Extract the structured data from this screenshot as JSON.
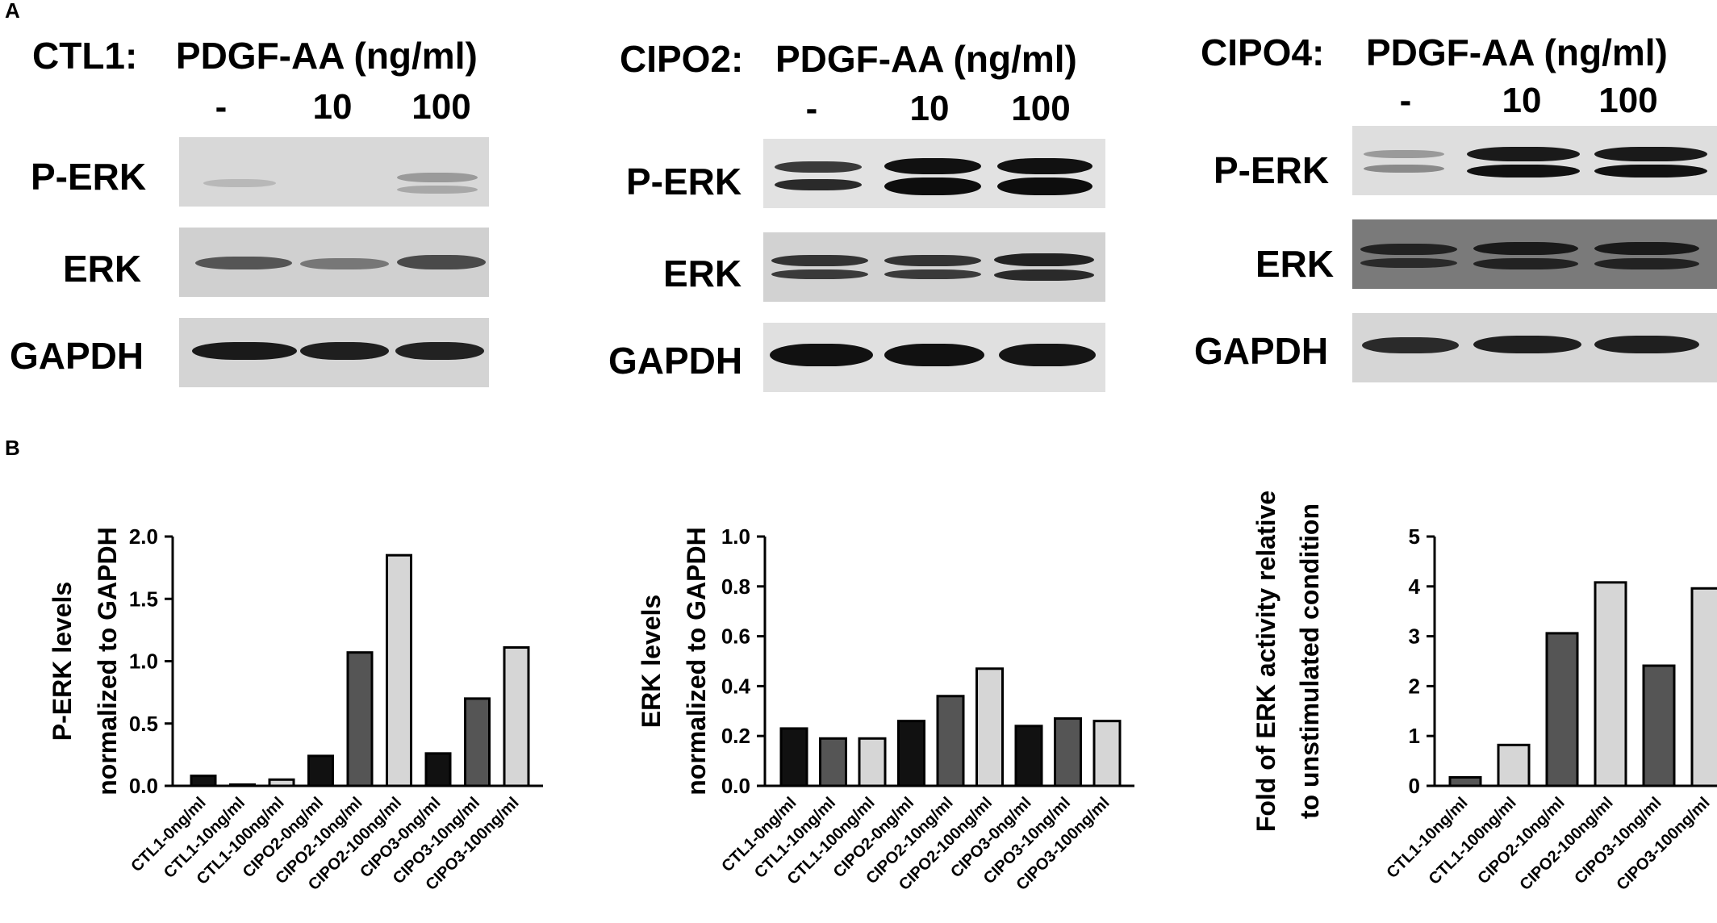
{
  "panel_labels": {
    "a": "A",
    "b": "B"
  },
  "blots": [
    {
      "cell_line": "CTL1:",
      "treatment": "PDGF-AA (ng/ml)",
      "doses": [
        "-",
        "10",
        "100"
      ],
      "rows": [
        "P-ERK",
        "ERK",
        "GAPDH"
      ]
    },
    {
      "cell_line": "CIPO2:",
      "treatment": "PDGF-AA (ng/ml)",
      "doses": [
        "-",
        "10",
        "100"
      ],
      "rows": [
        "P-ERK",
        "ERK",
        "GAPDH"
      ]
    },
    {
      "cell_line": "CIPO4:",
      "treatment": "PDGF-AA (ng/ml)",
      "doses": [
        "-",
        "10",
        "100"
      ],
      "rows": [
        "P-ERK",
        "ERK",
        "GAPDH"
      ]
    }
  ],
  "colors": {
    "black": "#111111",
    "dark_gray": "#555555",
    "light_gray": "#d6d6d6"
  },
  "chart_data": [
    {
      "type": "bar",
      "ylabel": [
        "P-ERK levels",
        "normalized to GAPDH"
      ],
      "ylim": [
        0,
        2.0
      ],
      "yticks": [
        "0.0",
        "0.5",
        "1.0",
        "1.5",
        "2.0"
      ],
      "categories": [
        "CTL1-0ng/ml",
        "CTL1-10ng/ml",
        "CTL1-100ng/ml",
        "CIPO2-0ng/ml",
        "CIPO2-10ng/ml",
        "CIPO2-100ng/ml",
        "CIPO3-0ng/ml",
        "CIPO3-10ng/ml",
        "CIPO3-100ng/ml"
      ],
      "values": [
        0.08,
        0.01,
        0.05,
        0.24,
        1.07,
        1.85,
        0.26,
        0.7,
        1.11
      ],
      "bar_colors": [
        "#111111",
        "#555555",
        "#d6d6d6",
        "#111111",
        "#555555",
        "#d6d6d6",
        "#111111",
        "#555555",
        "#d6d6d6"
      ]
    },
    {
      "type": "bar",
      "ylabel": [
        "ERK levels",
        "normalized to GAPDH"
      ],
      "ylim": [
        0,
        1.0
      ],
      "yticks": [
        "0.0",
        "0.2",
        "0.4",
        "0.6",
        "0.8",
        "1.0"
      ],
      "categories": [
        "CTL1-0ng/ml",
        "CTL1-10ng/ml",
        "CTL1-100ng/ml",
        "CIPO2-0ng/ml",
        "CIPO2-10ng/ml",
        "CIPO2-100ng/ml",
        "CIPO3-0ng/ml",
        "CIPO3-10ng/ml",
        "CIPO3-100ng/ml"
      ],
      "values": [
        0.23,
        0.19,
        0.19,
        0.26,
        0.36,
        0.47,
        0.24,
        0.27,
        0.26
      ],
      "bar_colors": [
        "#111111",
        "#555555",
        "#d6d6d6",
        "#111111",
        "#555555",
        "#d6d6d6",
        "#111111",
        "#555555",
        "#d6d6d6"
      ]
    },
    {
      "type": "bar",
      "ylabel": [
        "Fold of ERK activity relative",
        "to unstimulated condition"
      ],
      "ylim": [
        0,
        5
      ],
      "yticks": [
        "0",
        "1",
        "2",
        "3",
        "4",
        "5"
      ],
      "categories": [
        "CTL1-10ng/ml",
        "CTL1-100ng/ml",
        "CIPO2-10ng/ml",
        "CIPO2-100ng/ml",
        "CIPO3-10ng/ml",
        "CIPO3-100ng/ml"
      ],
      "values": [
        0.17,
        0.82,
        3.06,
        4.08,
        2.41,
        3.96
      ],
      "bar_colors": [
        "#555555",
        "#d6d6d6",
        "#555555",
        "#d6d6d6",
        "#555555",
        "#d6d6d6"
      ]
    }
  ]
}
